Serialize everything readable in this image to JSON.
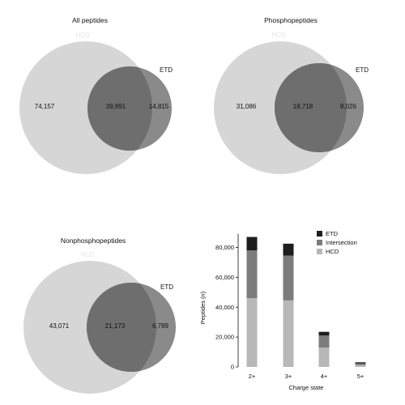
{
  "venns": [
    {
      "title": "All peptides",
      "label_a": "HCD",
      "label_b": "ETD",
      "only_a": "74,157",
      "intersection": "39,891",
      "only_b": "14,815"
    },
    {
      "title": "Phosphopeptides",
      "label_a": "HCD",
      "label_b": "ETD",
      "only_a": "31,086",
      "intersection": "18,718",
      "only_b": "8,026"
    },
    {
      "title": "Nonphosphopeptides",
      "label_a": "HCD",
      "label_b": "ETD",
      "only_a": "43,071",
      "intersection": "21,173",
      "only_b": "6,789"
    }
  ],
  "chart_data": {
    "type": "bar",
    "stacked": true,
    "categories": [
      "2+",
      "3+",
      "4+",
      "5+"
    ],
    "series": [
      {
        "name": "HCD",
        "values": [
          46000,
          44500,
          13000,
          1200
        ],
        "color": "#b8b8b8"
      },
      {
        "name": "Intersection",
        "values": [
          32000,
          30000,
          8000,
          1100
        ],
        "color": "#7c7c7c"
      },
      {
        "name": "ETD",
        "values": [
          9000,
          8000,
          2500,
          800
        ],
        "color": "#1e1e1e"
      }
    ],
    "legend_order": [
      "ETD",
      "Intersection",
      "HCD"
    ],
    "xlabel": "Charge state",
    "ylabel": "Peptides (n)",
    "ylabel_parts": [
      "Peptides (",
      "n",
      ")"
    ],
    "ylim": [
      0,
      90000
    ],
    "yticks": [
      0,
      20000,
      40000,
      60000,
      80000
    ],
    "ytick_labels": [
      "0",
      "20,000",
      "40,000",
      "60,000",
      "80,000"
    ],
    "legend_position": "top-right",
    "grid": false
  }
}
